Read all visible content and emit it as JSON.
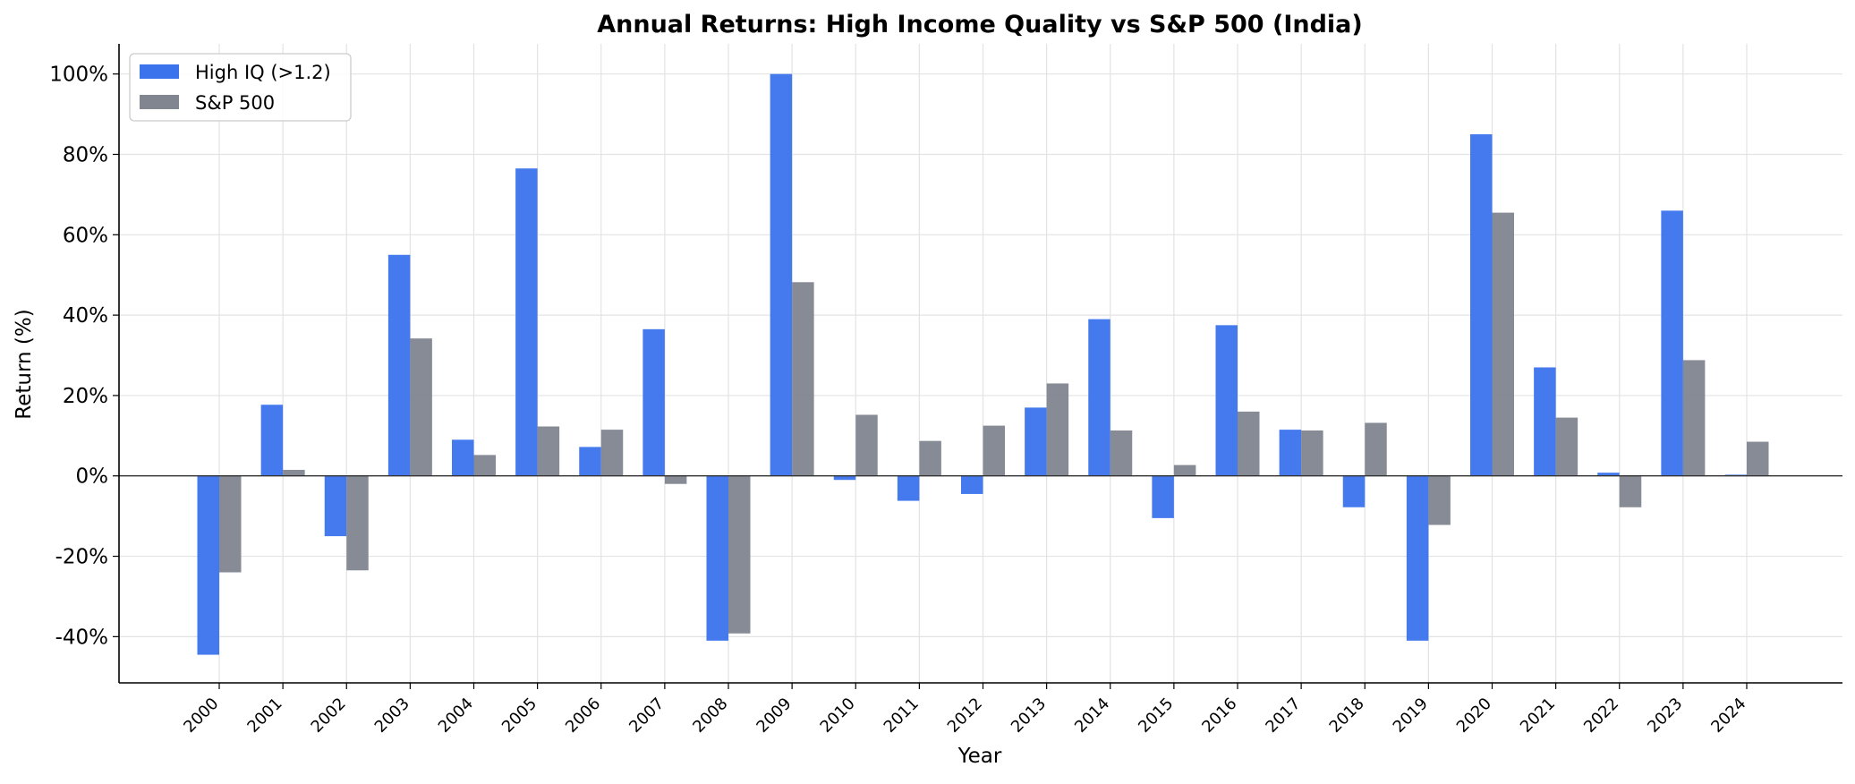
{
  "chart_data": {
    "type": "bar",
    "title": "Annual Returns: High Income Quality vs S&P 500 (India)",
    "xlabel": "Year",
    "ylabel": "Return (%)",
    "categories": [
      "2000",
      "2001",
      "2002",
      "2003",
      "2004",
      "2005",
      "2006",
      "2007",
      "2008",
      "2009",
      "2010",
      "2011",
      "2012",
      "2013",
      "2014",
      "2015",
      "2016",
      "2017",
      "2018",
      "2019",
      "2020",
      "2021",
      "2022",
      "2023",
      "2024"
    ],
    "series": [
      {
        "name": "High IQ (>1.2)",
        "color": "#3b73ed",
        "values": [
          -44.5,
          17.7,
          -15.0,
          55.0,
          9.0,
          76.5,
          7.2,
          36.5,
          -41.0,
          100.0,
          -1.0,
          -6.2,
          -4.5,
          17.0,
          39.0,
          -10.5,
          37.5,
          11.5,
          -7.8,
          -41.0,
          85.0,
          27.0,
          0.8,
          66.0,
          0.3
        ]
      },
      {
        "name": "S&P 500",
        "color": "#80858f",
        "values": [
          -24.0,
          1.5,
          -23.5,
          34.2,
          5.2,
          12.3,
          11.5,
          -2.0,
          -39.2,
          48.2,
          15.2,
          8.7,
          12.5,
          23.0,
          11.3,
          2.7,
          16.0,
          11.3,
          13.2,
          -12.2,
          65.5,
          14.5,
          -7.8,
          28.8,
          8.5
        ]
      }
    ],
    "ylim": [
      -51.5,
      107.5
    ],
    "yticks": [
      -40,
      -20,
      0,
      20,
      40,
      60,
      80,
      100
    ],
    "ytick_labels": [
      "-40%",
      "-20%",
      "0%",
      "20%",
      "40%",
      "60%",
      "80%",
      "100%"
    ],
    "grid": true,
    "legend_position": "top-left"
  }
}
